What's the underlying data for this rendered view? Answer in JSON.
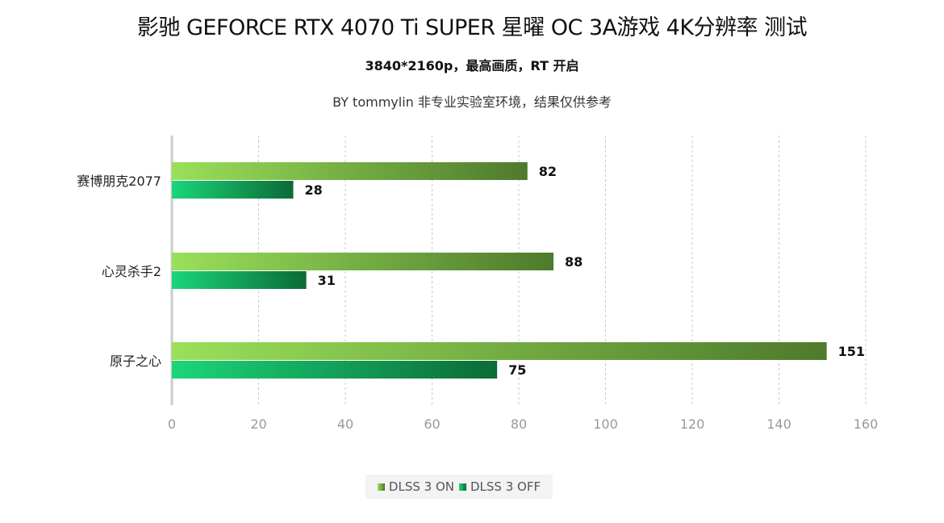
{
  "title": "影驰 GEFORCE RTX 4070 Ti SUPER 星曜 OC 3A游戏 4K分辨率 测试",
  "subtitle": "3840*2160p，最高画质，RT 开启",
  "note": "BY tommylin 非专业实验室环境，结果仅供参考",
  "colors": {
    "dlss_on_start": "#9ae05a",
    "dlss_on_end": "#4e7a2c",
    "dlss_off_start": "#1bd57a",
    "dlss_off_end": "#0b6b36",
    "grid": "#c8c8c8",
    "axis": "#cccccc",
    "tick_text": "#999999"
  },
  "chart_data": {
    "type": "bar",
    "orientation": "horizontal",
    "categories": [
      "赛博朋克2077",
      "心灵杀手2",
      "原子之心"
    ],
    "series": [
      {
        "name": "DLSS 3 ON",
        "values": [
          82,
          88,
          151
        ]
      },
      {
        "name": "DLSS 3 OFF",
        "values": [
          28,
          31,
          75
        ]
      }
    ],
    "xlim": [
      0,
      160
    ],
    "xticks": [
      "0",
      "20",
      "40",
      "60",
      "80",
      "100",
      "120",
      "140",
      "160"
    ],
    "grid": "vertical dashed",
    "legend_position": "bottom"
  }
}
